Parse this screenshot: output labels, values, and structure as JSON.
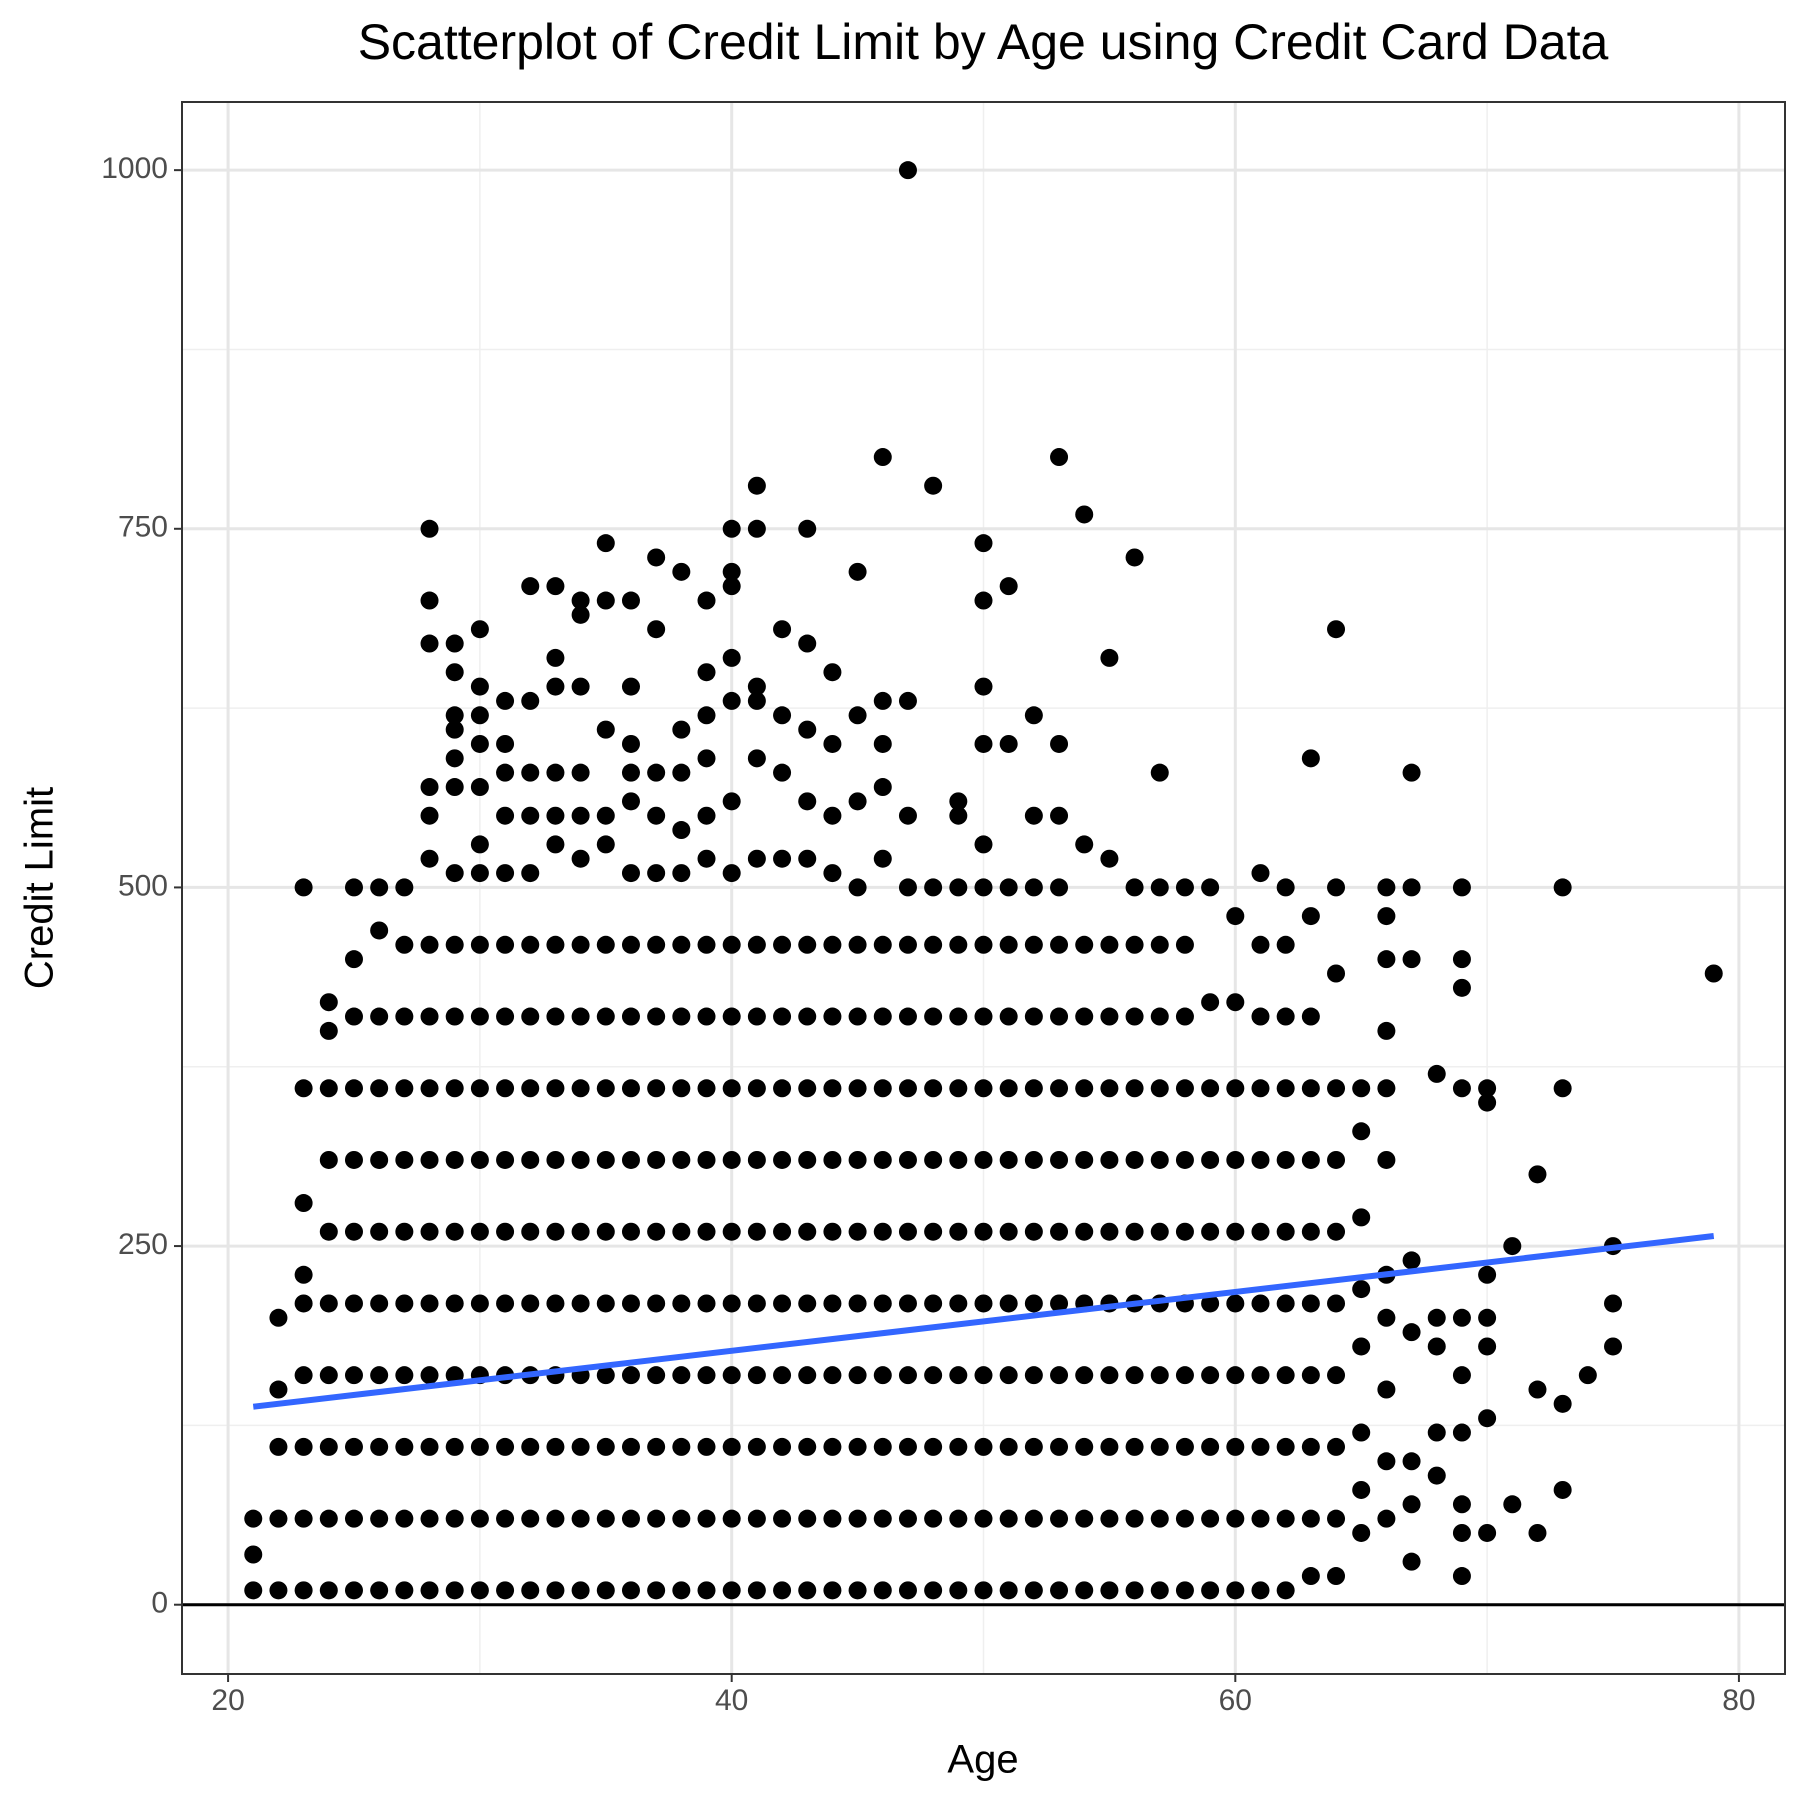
{
  "chart_data": {
    "type": "scatter",
    "title": "Scatterplot of Credit Limit by Age using Credit Card Data",
    "xlabel": "Age",
    "ylabel": "Credit Limit",
    "color": "#000000",
    "x": [
      21,
      21,
      21,
      22,
      22,
      22,
      22,
      22,
      23,
      23,
      23,
      23,
      23,
      23,
      23,
      23,
      23,
      24,
      24,
      24,
      24,
      24,
      24,
      24,
      24,
      24,
      24,
      25,
      25,
      25,
      25,
      25,
      25,
      25,
      25,
      25,
      25,
      25,
      26,
      26,
      26,
      26,
      26,
      26,
      26,
      26,
      26,
      26,
      26,
      27,
      27,
      27,
      27,
      27,
      27,
      27,
      27,
      27,
      27,
      27,
      28,
      28,
      28,
      28,
      28,
      28,
      28,
      28,
      28,
      28,
      28,
      28,
      28,
      28,
      28,
      28,
      29,
      29,
      29,
      29,
      29,
      29,
      29,
      29,
      29,
      29,
      29,
      29,
      29,
      29,
      29,
      29,
      29,
      30,
      30,
      30,
      30,
      30,
      30,
      30,
      30,
      30,
      30,
      30,
      30,
      30,
      30,
      30,
      30,
      30,
      31,
      31,
      31,
      31,
      31,
      31,
      31,
      31,
      31,
      31,
      31,
      31,
      31,
      31,
      31,
      32,
      32,
      32,
      32,
      32,
      32,
      32,
      32,
      32,
      32,
      32,
      32,
      32,
      32,
      32,
      33,
      33,
      33,
      33,
      33,
      33,
      33,
      33,
      33,
      33,
      33,
      33,
      33,
      33,
      33,
      33,
      34,
      34,
      34,
      34,
      34,
      34,
      34,
      34,
      34,
      34,
      34,
      34,
      34,
      34,
      34,
      34,
      35,
      35,
      35,
      35,
      35,
      35,
      35,
      35,
      35,
      35,
      35,
      35,
      35,
      35,
      35,
      36,
      36,
      36,
      36,
      36,
      36,
      36,
      36,
      36,
      36,
      36,
      36,
      36,
      36,
      36,
      36,
      37,
      37,
      37,
      37,
      37,
      37,
      37,
      37,
      37,
      37,
      37,
      37,
      37,
      37,
      37,
      38,
      38,
      38,
      38,
      38,
      38,
      38,
      38,
      38,
      38,
      38,
      38,
      38,
      38,
      38,
      39,
      39,
      39,
      39,
      39,
      39,
      39,
      39,
      39,
      39,
      39,
      39,
      39,
      39,
      39,
      39,
      40,
      40,
      40,
      40,
      40,
      40,
      40,
      40,
      40,
      40,
      40,
      40,
      40,
      40,
      40,
      40,
      40,
      41,
      41,
      41,
      41,
      41,
      41,
      41,
      41,
      41,
      41,
      41,
      41,
      41,
      41,
      41,
      41,
      42,
      42,
      42,
      42,
      42,
      42,
      42,
      42,
      42,
      42,
      42,
      42,
      42,
      42,
      43,
      43,
      43,
      43,
      43,
      43,
      43,
      43,
      43,
      43,
      43,
      43,
      43,
      43,
      43,
      44,
      44,
      44,
      44,
      44,
      44,
      44,
      44,
      44,
      44,
      44,
      44,
      44,
      44,
      45,
      45,
      45,
      45,
      45,
      45,
      45,
      45,
      45,
      45,
      45,
      45,
      45,
      45,
      46,
      46,
      46,
      46,
      46,
      46,
      46,
      46,
      46,
      46,
      46,
      46,
      46,
      46,
      46,
      47,
      47,
      47,
      47,
      47,
      47,
      47,
      47,
      47,
      47,
      47,
      47,
      47,
      47,
      48,
      48,
      48,
      48,
      48,
      48,
      48,
      48,
      48,
      48,
      48,
      48,
      49,
      49,
      49,
      49,
      49,
      49,
      49,
      49,
      49,
      49,
      49,
      49,
      49,
      50,
      50,
      50,
      50,
      50,
      50,
      50,
      50,
      50,
      50,
      50,
      50,
      50,
      50,
      50,
      50,
      51,
      51,
      51,
      51,
      51,
      51,
      51,
      51,
      51,
      51,
      51,
      51,
      51,
      52,
      52,
      52,
      52,
      52,
      52,
      52,
      52,
      52,
      52,
      52,
      52,
      52,
      53,
      53,
      53,
      53,
      53,
      53,
      53,
      53,
      53,
      53,
      53,
      53,
      53,
      53,
      54,
      54,
      54,
      54,
      54,
      54,
      54,
      54,
      54,
      54,
      54,
      54,
      55,
      55,
      55,
      55,
      55,
      55,
      55,
      55,
      55,
      55,
      55,
      55,
      56,
      56,
      56,
      56,
      56,
      56,
      56,
      56,
      56,
      56,
      56,
      56,
      57,
      57,
      57,
      57,
      57,
      57,
      57,
      57,
      57,
      57,
      57,
      57,
      58,
      58,
      58,
      58,
      58,
      58,
      58,
      58,
      58,
      58,
      58,
      59,
      59,
      59,
      59,
      59,
      59,
      59,
      59,
      59,
      59,
      60,
      60,
      60,
      60,
      60,
      60,
      60,
      60,
      60,
      60,
      61,
      61,
      61,
      61,
      61,
      61,
      61,
      61,
      61,
      61,
      61,
      62,
      62,
      62,
      62,
      62,
      62,
      62,
      62,
      62,
      62,
      62,
      63,
      63,
      63,
      63,
      63,
      63,
      63,
      63,
      63,
      63,
      63,
      64,
      64,
      64,
      64,
      64,
      64,
      64,
      64,
      64,
      64,
      64,
      65,
      65,
      65,
      65,
      65,
      65,
      65,
      65,
      66,
      66,
      66,
      66,
      66,
      66,
      66,
      66,
      66,
      66,
      66,
      67,
      67,
      67,
      67,
      67,
      67,
      67,
      67,
      68,
      68,
      68,
      68,
      68,
      69,
      69,
      69,
      69,
      69,
      69,
      69,
      69,
      69,
      69,
      70,
      70,
      70,
      70,
      70,
      70,
      70,
      71,
      71,
      72,
      72,
      72,
      73,
      73,
      73,
      73,
      74,
      75,
      75,
      75,
      79
    ],
    "values": [
      10,
      35,
      60,
      10,
      60,
      110,
      150,
      200,
      10,
      60,
      110,
      160,
      210,
      230,
      280,
      360,
      500,
      10,
      60,
      110,
      160,
      210,
      260,
      310,
      360,
      400,
      420,
      10,
      60,
      110,
      160,
      210,
      260,
      310,
      360,
      410,
      450,
      500,
      10,
      60,
      110,
      160,
      210,
      260,
      310,
      360,
      410,
      470,
      500,
      10,
      60,
      110,
      160,
      210,
      260,
      310,
      360,
      410,
      460,
      500,
      10,
      60,
      110,
      160,
      210,
      260,
      310,
      360,
      410,
      460,
      520,
      550,
      570,
      670,
      700,
      750,
      10,
      60,
      110,
      160,
      210,
      260,
      310,
      360,
      410,
      460,
      510,
      570,
      590,
      610,
      620,
      650,
      670,
      10,
      60,
      110,
      160,
      210,
      260,
      310,
      360,
      410,
      460,
      510,
      530,
      570,
      600,
      620,
      640,
      680,
      10,
      60,
      110,
      160,
      210,
      260,
      310,
      360,
      410,
      460,
      510,
      550,
      580,
      600,
      630,
      10,
      60,
      110,
      160,
      210,
      260,
      310,
      360,
      410,
      460,
      510,
      550,
      580,
      630,
      710,
      10,
      60,
      110,
      160,
      210,
      260,
      310,
      360,
      410,
      460,
      530,
      550,
      580,
      640,
      660,
      710,
      10,
      60,
      110,
      160,
      210,
      260,
      310,
      360,
      410,
      460,
      520,
      550,
      580,
      640,
      690,
      700,
      10,
      60,
      110,
      160,
      210,
      260,
      310,
      360,
      410,
      460,
      530,
      550,
      610,
      700,
      740,
      10,
      60,
      110,
      160,
      210,
      260,
      310,
      360,
      410,
      460,
      510,
      560,
      580,
      600,
      640,
      700,
      10,
      60,
      110,
      160,
      210,
      260,
      310,
      360,
      410,
      460,
      510,
      550,
      580,
      680,
      730,
      10,
      60,
      110,
      160,
      210,
      260,
      310,
      360,
      410,
      460,
      510,
      540,
      580,
      610,
      720,
      10,
      60,
      110,
      160,
      210,
      260,
      310,
      360,
      410,
      460,
      520,
      550,
      590,
      620,
      650,
      700,
      10,
      60,
      110,
      160,
      210,
      260,
      310,
      360,
      410,
      460,
      510,
      560,
      630,
      660,
      710,
      720,
      750,
      10,
      60,
      110,
      160,
      210,
      260,
      310,
      360,
      410,
      460,
      520,
      590,
      630,
      640,
      750,
      780,
      10,
      60,
      110,
      160,
      210,
      260,
      310,
      360,
      410,
      460,
      520,
      580,
      620,
      680,
      10,
      60,
      110,
      160,
      210,
      260,
      310,
      360,
      410,
      460,
      520,
      560,
      610,
      670,
      750,
      10,
      60,
      110,
      160,
      210,
      260,
      310,
      360,
      410,
      460,
      510,
      550,
      600,
      650,
      10,
      60,
      110,
      160,
      210,
      260,
      310,
      360,
      410,
      460,
      500,
      560,
      620,
      720,
      10,
      60,
      110,
      160,
      210,
      260,
      310,
      360,
      410,
      460,
      520,
      570,
      600,
      630,
      800,
      10,
      60,
      110,
      160,
      210,
      260,
      310,
      360,
      410,
      460,
      500,
      550,
      630,
      1000,
      10,
      60,
      110,
      160,
      210,
      260,
      310,
      360,
      410,
      460,
      500,
      780,
      10,
      60,
      110,
      160,
      210,
      260,
      310,
      360,
      410,
      460,
      500,
      550,
      560,
      10,
      60,
      110,
      160,
      210,
      260,
      310,
      360,
      410,
      460,
      500,
      530,
      600,
      640,
      700,
      740,
      10,
      60,
      110,
      160,
      210,
      260,
      310,
      360,
      410,
      460,
      500,
      600,
      710,
      10,
      60,
      110,
      160,
      210,
      260,
      310,
      360,
      410,
      460,
      500,
      550,
      620,
      10,
      60,
      110,
      160,
      210,
      260,
      310,
      360,
      410,
      460,
      500,
      550,
      600,
      800,
      10,
      60,
      110,
      160,
      210,
      260,
      310,
      360,
      410,
      460,
      530,
      760,
      10,
      60,
      110,
      160,
      210,
      260,
      310,
      360,
      410,
      460,
      520,
      660,
      10,
      60,
      110,
      160,
      210,
      260,
      310,
      360,
      410,
      460,
      500,
      730,
      10,
      60,
      110,
      160,
      210,
      260,
      310,
      360,
      410,
      460,
      500,
      580,
      10,
      60,
      110,
      160,
      210,
      260,
      310,
      360,
      410,
      460,
      500,
      10,
      60,
      110,
      160,
      210,
      260,
      310,
      360,
      420,
      500,
      10,
      60,
      110,
      160,
      210,
      260,
      310,
      360,
      420,
      480,
      10,
      60,
      110,
      160,
      210,
      260,
      310,
      360,
      410,
      460,
      510,
      10,
      60,
      110,
      160,
      210,
      260,
      310,
      360,
      410,
      460,
      500,
      20,
      60,
      110,
      160,
      210,
      260,
      310,
      360,
      410,
      480,
      590,
      20,
      60,
      110,
      160,
      210,
      260,
      310,
      360,
      440,
      500,
      680,
      50,
      80,
      120,
      180,
      220,
      270,
      330,
      360,
      60,
      100,
      150,
      200,
      230,
      310,
      360,
      400,
      450,
      480,
      500,
      30,
      70,
      100,
      190,
      240,
      450,
      500,
      580,
      90,
      120,
      180,
      200,
      370,
      20,
      50,
      70,
      120,
      160,
      200,
      360,
      430,
      450,
      500,
      50,
      130,
      180,
      200,
      230,
      350,
      360,
      70,
      250,
      50,
      150,
      300,
      80,
      140,
      360,
      500,
      160,
      180,
      210,
      250,
      440
    ],
    "trend": {
      "x": [
        21,
        79
      ],
      "values": [
        138,
        257
      ],
      "color": "#3366ff"
    },
    "hline": 0,
    "xlim": [
      18.17,
      81.83
    ],
    "ylim": [
      -48.3,
      1047.5
    ],
    "xticks": [
      20,
      40,
      60,
      80
    ],
    "yticks": [
      0,
      250,
      500,
      750,
      1000
    ],
    "x_minor_grid": [
      30,
      50,
      70
    ],
    "y_minor_grid": [
      125,
      375,
      625,
      875
    ],
    "grid": true
  }
}
